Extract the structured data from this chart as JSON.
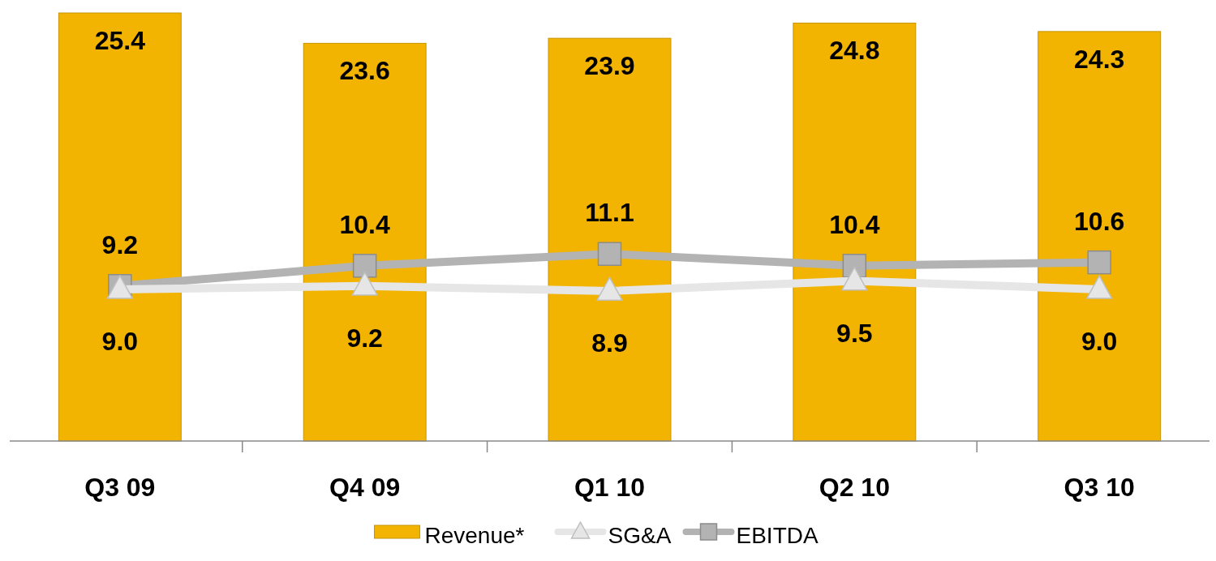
{
  "chart_data": {
    "type": "bar",
    "categories": [
      "Q3 09",
      "Q4 09",
      "Q1 10",
      "Q2 10",
      "Q3 10"
    ],
    "series": [
      {
        "name": "Revenue*",
        "color": "#f2b400",
        "values": [
          25.4,
          23.6,
          23.9,
          24.8,
          24.3
        ]
      },
      {
        "name": "SG&A",
        "type": "line",
        "color": "#e6e6e6",
        "marker": "triangle",
        "values": [
          9.0,
          9.2,
          8.9,
          9.5,
          9.0
        ],
        "value_labels": [
          "9.0",
          "9.2",
          "8.9",
          "9.5",
          "9.0"
        ]
      },
      {
        "name": "EBITDA",
        "type": "line",
        "color": "#b3b3b3",
        "marker": "square",
        "values": [
          9.2,
          10.4,
          11.1,
          10.4,
          10.6
        ]
      }
    ],
    "data_labels": true,
    "legend": "bottom"
  }
}
